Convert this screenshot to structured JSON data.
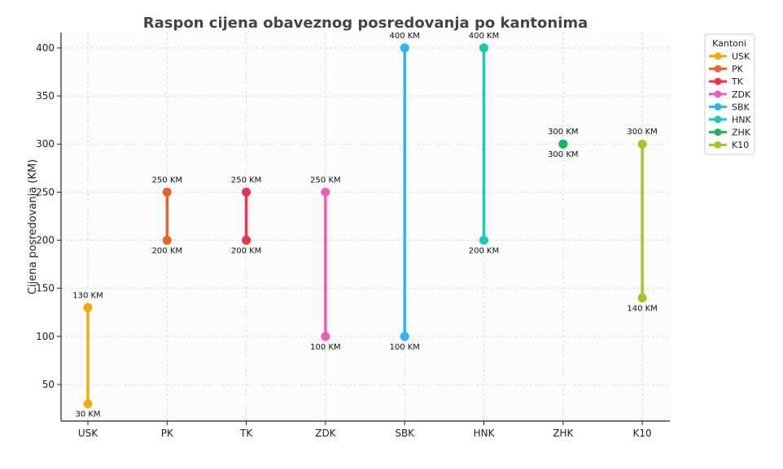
{
  "chart_data": {
    "type": "range",
    "title": "Raspon cijena obaveznog posredovanja po kantonima",
    "xlabel": "",
    "ylabel": "Cijena posredovanja (KM)",
    "ylim": [
      12,
      416
    ],
    "yticks": [
      50,
      100,
      150,
      200,
      250,
      300,
      350,
      400
    ],
    "grid": true,
    "legend": {
      "title": "Kantoni",
      "placement": "top-right"
    },
    "categories": [
      "USK",
      "PK",
      "TK",
      "ZDK",
      "SBK",
      "HNK",
      "ZHK",
      "K10"
    ],
    "series": [
      {
        "name": "USK",
        "min": 30,
        "max": 130,
        "min_label": "30 KM",
        "max_label": "130 KM",
        "color": "#F5A70C"
      },
      {
        "name": "PK",
        "min": 200,
        "max": 250,
        "min_label": "200 KM",
        "max_label": "250 KM",
        "color": "#E8622A"
      },
      {
        "name": "TK",
        "min": 200,
        "max": 250,
        "min_label": "200 KM",
        "max_label": "250 KM",
        "color": "#E8344E"
      },
      {
        "name": "ZDK",
        "min": 100,
        "max": 250,
        "min_label": "100 KM",
        "max_label": "250 KM",
        "color": "#EE5BC0"
      },
      {
        "name": "SBK",
        "min": 100,
        "max": 400,
        "min_label": "100 KM",
        "max_label": "400 KM",
        "color": "#29B6F6"
      },
      {
        "name": "HNK",
        "min": 200,
        "max": 400,
        "min_label": "200 KM",
        "max_label": "400 KM",
        "color": "#14CBB8"
      },
      {
        "name": "ZHK",
        "min": 300,
        "max": 300,
        "min_label": "300 KM",
        "max_label": "300 KM",
        "color": "#10B956"
      },
      {
        "name": "K10",
        "min": 140,
        "max": 300,
        "min_label": "140 KM",
        "max_label": "300 KM",
        "color": "#9CC829"
      }
    ]
  }
}
